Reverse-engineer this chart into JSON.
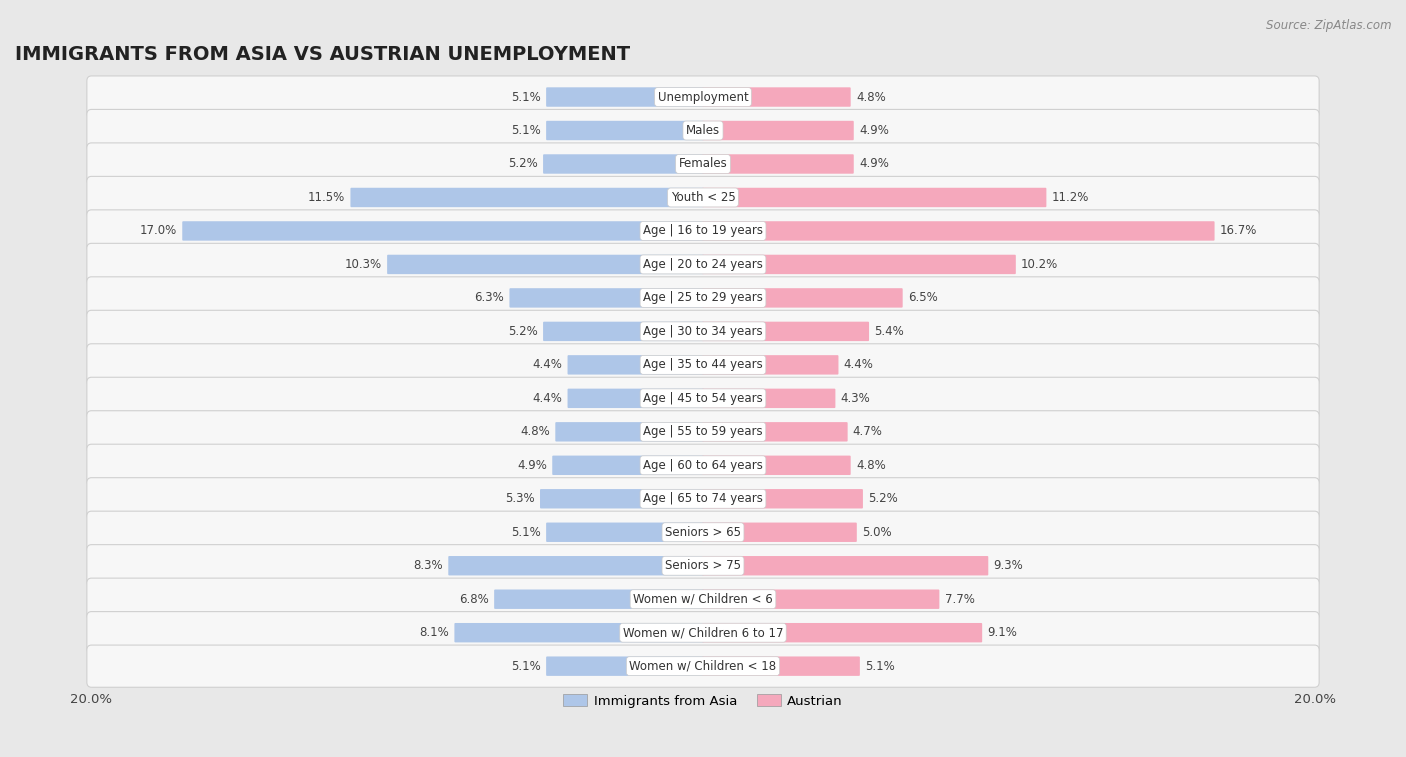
{
  "title": "IMMIGRANTS FROM ASIA VS AUSTRIAN UNEMPLOYMENT",
  "source": "Source: ZipAtlas.com",
  "categories": [
    "Unemployment",
    "Males",
    "Females",
    "Youth < 25",
    "Age | 16 to 19 years",
    "Age | 20 to 24 years",
    "Age | 25 to 29 years",
    "Age | 30 to 34 years",
    "Age | 35 to 44 years",
    "Age | 45 to 54 years",
    "Age | 55 to 59 years",
    "Age | 60 to 64 years",
    "Age | 65 to 74 years",
    "Seniors > 65",
    "Seniors > 75",
    "Women w/ Children < 6",
    "Women w/ Children 6 to 17",
    "Women w/ Children < 18"
  ],
  "left_values": [
    5.1,
    5.1,
    5.2,
    11.5,
    17.0,
    10.3,
    6.3,
    5.2,
    4.4,
    4.4,
    4.8,
    4.9,
    5.3,
    5.1,
    8.3,
    6.8,
    8.1,
    5.1
  ],
  "right_values": [
    4.8,
    4.9,
    4.9,
    11.2,
    16.7,
    10.2,
    6.5,
    5.4,
    4.4,
    4.3,
    4.7,
    4.8,
    5.2,
    5.0,
    9.3,
    7.7,
    9.1,
    5.1
  ],
  "left_color": "#aec6e8",
  "right_color": "#f5a8bc",
  "bar_height": 0.52,
  "background_color": "#e8e8e8",
  "row_bg": "#f7f7f7",
  "max_value": 20.0,
  "title_fontsize": 14,
  "cat_fontsize": 8.5,
  "val_fontsize": 8.5,
  "legend_left_label": "Immigrants from Asia",
  "legend_right_label": "Austrian"
}
